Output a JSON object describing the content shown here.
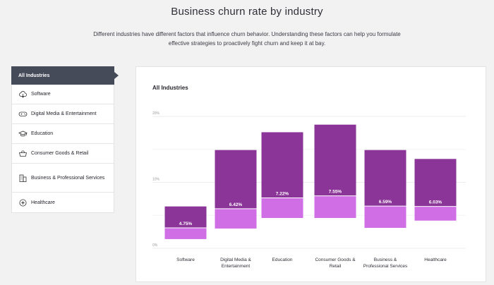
{
  "page": {
    "title": "Business churn rate by industry",
    "intro": "Different industries have different factors that influence churn behavior. Understanding these factors can help you formulate effective strategies to proactively fight churn and keep it at bay."
  },
  "sidebar": {
    "items": [
      {
        "label": "All Industries",
        "icon": "none",
        "active": true
      },
      {
        "label": "Software",
        "icon": "cloud-icon"
      },
      {
        "label": "Digital Media & Entertainment",
        "icon": "gamepad-icon"
      },
      {
        "label": "Education",
        "icon": "graduation-cap-icon"
      },
      {
        "label": "Consumer Goods & Retail",
        "icon": "shopping-basket-icon"
      },
      {
        "label": "Business & Professional Services",
        "icon": "office-building-icon"
      },
      {
        "label": "Healthcare",
        "icon": "medical-cross-icon"
      }
    ]
  },
  "panel": {
    "title": "All Industries"
  },
  "colors": {
    "sidebar_active": "#464b5a",
    "bar_upper": "#8a3597",
    "bar_lower": "#d06ee6"
  },
  "chart_data": {
    "type": "bar",
    "stacked": true,
    "y_tick_labels": [
      "20%",
      "10%",
      "0%"
    ],
    "categories": [
      "Software",
      "Digital Media & Entertainment",
      "Education",
      "Consumer Goods & Retail",
      "Business & Professional Services",
      "Healthcare"
    ],
    "category_lines": [
      [
        "Software"
      ],
      [
        "Digital Media &",
        "Entertainment"
      ],
      [
        "Education"
      ],
      [
        "Consumer Goods &",
        "Retail"
      ],
      [
        "Business &",
        "Professional Services"
      ],
      [
        "Healthcare"
      ]
    ],
    "value_labels": [
      "4.75%",
      "6.42%",
      "7.22%",
      "7.55%",
      "6.59%",
      "6.03%"
    ],
    "series": [
      {
        "values": [
          3.25,
          8.9,
          9.95,
          10.8,
          8.5,
          7.2
        ]
      },
      {
        "values": [
          1.7,
          3.0,
          3.05,
          3.35,
          3.3,
          2.15
        ]
      }
    ],
    "ylim": [
      0,
      20
    ],
    "grid": true,
    "legend": "none"
  }
}
